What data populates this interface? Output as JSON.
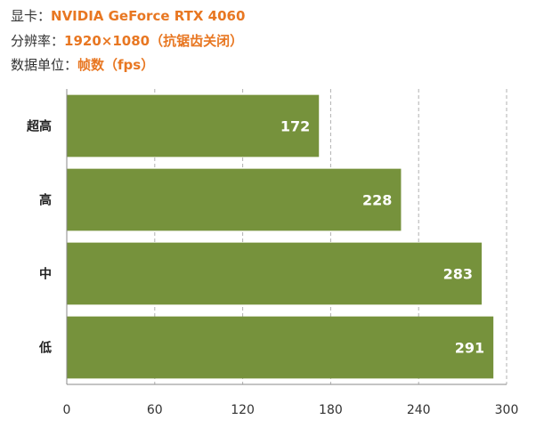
{
  "info": {
    "gpu_label": "显卡：",
    "gpu_value": "NVIDIA GeForce RTX 4060",
    "res_label": "分辨率：",
    "res_value": "1920×1080（抗锯齿关闭）",
    "unit_label": "数据单位：",
    "unit_value": "帧数（fps）"
  },
  "colors": {
    "accent": "#e87722",
    "bar": "#76923c",
    "grid": "#b0b0b0",
    "axis": "#888888"
  },
  "chart_data": {
    "type": "bar",
    "orientation": "horizontal",
    "categories": [
      "超高",
      "高",
      "中",
      "低"
    ],
    "values": [
      172,
      228,
      283,
      291
    ],
    "xlim": [
      0,
      300
    ],
    "xticks": [
      0,
      60,
      120,
      180,
      240,
      300
    ],
    "grid": "vertical dashed",
    "legend": "none",
    "data_labels": true
  }
}
